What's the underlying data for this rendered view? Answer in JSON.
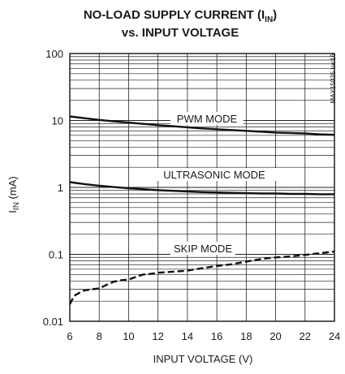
{
  "chart_data": {
    "type": "line",
    "title_line1": "NO-LOAD SUPPLY CURRENT (I",
    "title_sub": "IN",
    "title_close": ")",
    "title_line2": "vs. INPUT VOLTAGE",
    "xlabel": "INPUT VOLTAGE (V)",
    "ylabel_main": "I",
    "ylabel_sub": "IN",
    "ylabel_unit": " (mA)",
    "figure_code": "MAX15035 toc16",
    "x_scale": "linear",
    "y_scale": "log",
    "xlim": [
      6,
      24
    ],
    "ylim": [
      0.01,
      100
    ],
    "x_ticks": [
      "6",
      "8",
      "10",
      "12",
      "14",
      "16",
      "18",
      "20",
      "22",
      "24"
    ],
    "y_ticks": [
      "100",
      "10",
      "1",
      "0.1",
      "0.01"
    ],
    "grid": true,
    "series": [
      {
        "name": "PWM MODE",
        "style": "solid",
        "x": [
          6,
          7,
          8,
          9,
          10,
          11,
          12,
          13,
          14,
          15,
          16,
          17,
          18,
          19,
          20,
          21,
          22,
          23,
          24
        ],
        "y": [
          11.5,
          10.8,
          10.2,
          9.7,
          9.3,
          8.9,
          8.5,
          8.2,
          7.9,
          7.6,
          7.4,
          7.2,
          7.0,
          6.8,
          6.6,
          6.5,
          6.4,
          6.2,
          6.1
        ]
      },
      {
        "name": "ULTRASONIC MODE",
        "style": "solid",
        "x": [
          6,
          7,
          8,
          9,
          10,
          11,
          12,
          13,
          14,
          15,
          16,
          17,
          18,
          19,
          20,
          21,
          22,
          23,
          24
        ],
        "y": [
          1.2,
          1.12,
          1.06,
          1.01,
          0.97,
          0.94,
          0.91,
          0.89,
          0.87,
          0.85,
          0.84,
          0.83,
          0.82,
          0.81,
          0.81,
          0.8,
          0.8,
          0.79,
          0.79
        ]
      },
      {
        "name": "SKIP MODE",
        "style": "dashed",
        "x": [
          6,
          6.3,
          6.7,
          7,
          7.5,
          8,
          8.5,
          9,
          9.5,
          10,
          10.5,
          11,
          11.5,
          12,
          13,
          14,
          15,
          16,
          17,
          18,
          19,
          20,
          21,
          22,
          23,
          24
        ],
        "y": [
          0.018,
          0.024,
          0.027,
          0.029,
          0.03,
          0.031,
          0.035,
          0.039,
          0.041,
          0.042,
          0.046,
          0.05,
          0.051,
          0.053,
          0.055,
          0.057,
          0.062,
          0.067,
          0.071,
          0.078,
          0.085,
          0.09,
          0.093,
          0.098,
          0.104,
          0.11
        ]
      }
    ],
    "annotations": [
      "PWM MODE",
      "ULTRASONIC MODE",
      "SKIP MODE"
    ]
  }
}
